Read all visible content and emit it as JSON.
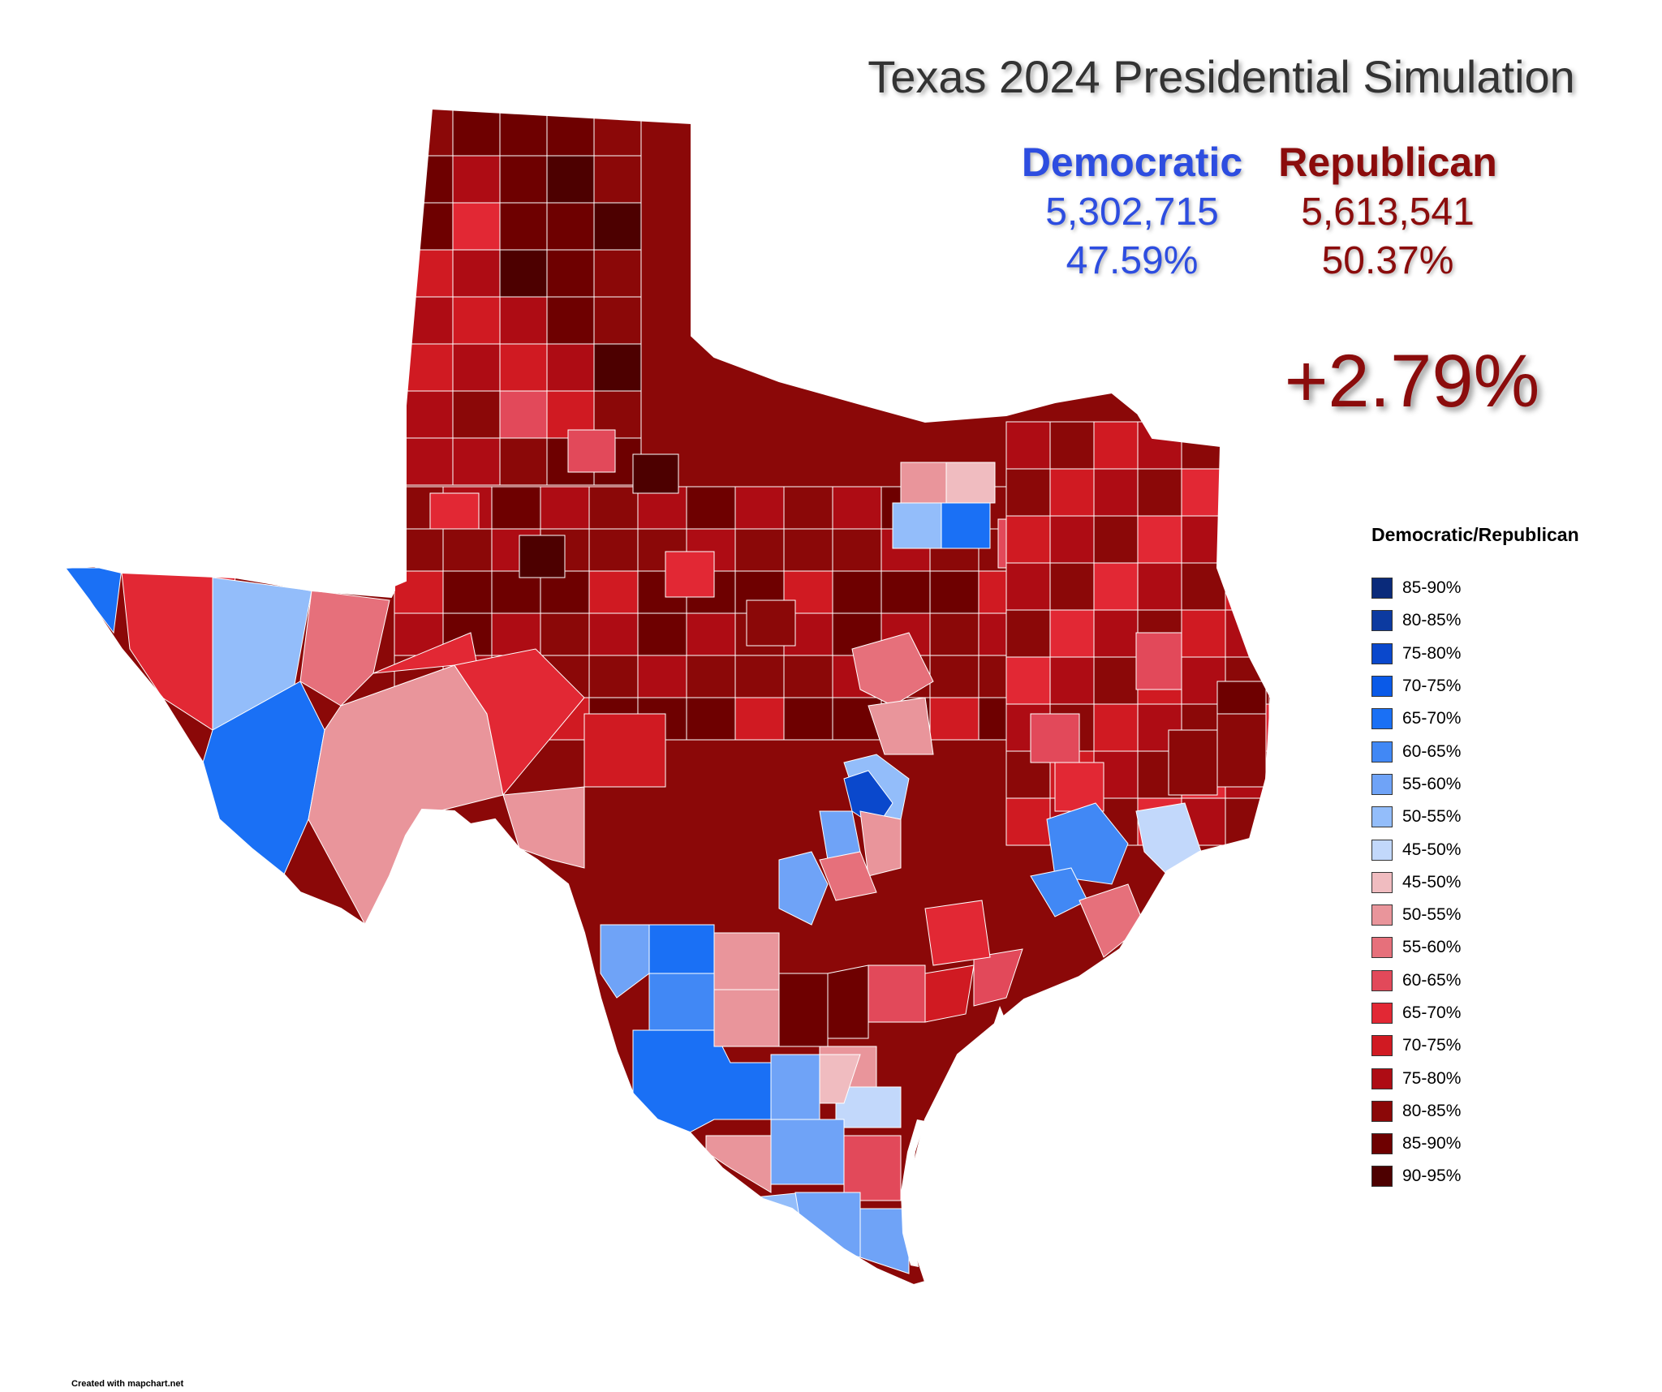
{
  "title": "Texas 2024 Presidential Simulation",
  "results": {
    "democratic": {
      "name": "Democratic",
      "votes": "5,302,715",
      "pct": "47.59%",
      "color": "#2d4de0"
    },
    "republican": {
      "name": "Republican",
      "votes": "5,613,541",
      "pct": "50.37%",
      "color": "#8b0c0c"
    },
    "margin": "+2.79%"
  },
  "legend": {
    "title": "Democratic/Republican",
    "items": [
      {
        "label": "85-90%",
        "color": "#0a2a7a"
      },
      {
        "label": "80-85%",
        "color": "#0c3aa0"
      },
      {
        "label": "75-80%",
        "color": "#0a48cc"
      },
      {
        "label": "70-75%",
        "color": "#0a5ae8"
      },
      {
        "label": "65-70%",
        "color": "#1a70f5"
      },
      {
        "label": "60-65%",
        "color": "#4188f5"
      },
      {
        "label": "55-60%",
        "color": "#6fa3f7"
      },
      {
        "label": "50-55%",
        "color": "#93bdfa"
      },
      {
        "label": "45-50%",
        "color": "#c2d8fb"
      },
      {
        "label": "45-50%",
        "color": "#f0bcc0"
      },
      {
        "label": "50-55%",
        "color": "#e9959b"
      },
      {
        "label": "55-60%",
        "color": "#e6707b"
      },
      {
        "label": "60-65%",
        "color": "#e2495a"
      },
      {
        "label": "65-70%",
        "color": "#e22834"
      },
      {
        "label": "70-75%",
        "color": "#d01a22"
      },
      {
        "label": "75-80%",
        "color": "#ae0c14"
      },
      {
        "label": "80-85%",
        "color": "#8b0808"
      },
      {
        "label": "85-90%",
        "color": "#6e0000"
      },
      {
        "label": "90-95%",
        "color": "#4d0000"
      }
    ]
  },
  "credit": "Created with mapchart.net"
}
